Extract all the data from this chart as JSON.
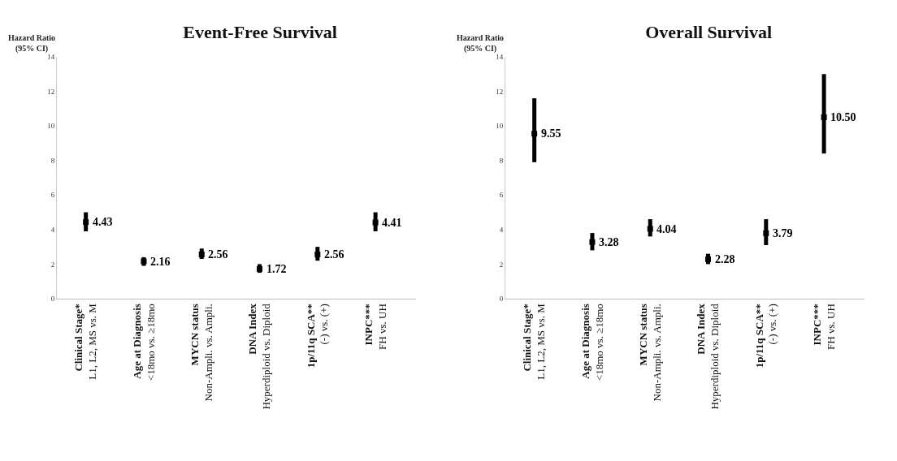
{
  "chart_data": [
    {
      "type": "scatter",
      "title": "Event-Free Survival",
      "ylabel": "Hazard Ratio\n(95% CI)",
      "categories": [
        "Clinical Stage*\nL1, L2, MS vs. M",
        "Age at Diagnosis\n<18mo vs. ≥18mo",
        "MYCN status\nNon-Ampli. vs. Ampli.",
        "DNA Index\nHyperdiploid vs. Diploid",
        "1p/11q SCA**\n(-) vs. (+)",
        "INPC***\nFH vs. UH"
      ],
      "series": [
        {
          "color": "#000000",
          "values": [
            4.43,
            2.16,
            2.56,
            1.72,
            2.56,
            4.41
          ],
          "errors": [
            [
              3.9,
              5.0
            ],
            [
              1.9,
              2.4
            ],
            [
              2.3,
              2.9
            ],
            [
              1.5,
              2.0
            ],
            [
              2.2,
              3.0
            ],
            [
              3.9,
              5.0
            ]
          ],
          "value_labels": [
            "4.43",
            "2.16",
            "2.56",
            "1.72",
            "2.56",
            "4.41"
          ]
        }
      ],
      "ylim": [
        0,
        14
      ],
      "yticks": [
        0,
        2,
        4,
        6,
        8,
        10,
        12,
        14
      ],
      "grid": false
    },
    {
      "type": "scatter",
      "title": "Overall Survival",
      "ylabel": "Hazard Ratio\n(95% CI)",
      "categories": [
        "Clinical Stage*\nL1, L2, MS vs. M",
        "Age at Diagnosis\n<18mo vs. ≥18mo",
        "MYCN status\nNon-Ampli. vs. Ampli.",
        "DNA Index\nHyperdiploid vs. Diploid",
        "1p/11q SCA**\n(-) vs. (+)",
        "INPC***\nFH vs. UH"
      ],
      "series": [
        {
          "color": "#000000",
          "values": [
            9.55,
            3.28,
            4.04,
            2.28,
            3.79,
            10.5
          ],
          "errors": [
            [
              7.9,
              11.6
            ],
            [
              2.8,
              3.8
            ],
            [
              3.6,
              4.6
            ],
            [
              2.0,
              2.6
            ],
            [
              3.1,
              4.6
            ],
            [
              8.4,
              13.0
            ]
          ],
          "value_labels": [
            "9.55",
            "3.28",
            "4.04",
            "2.28",
            "3.79",
            "10.50"
          ]
        }
      ],
      "ylim": [
        0,
        14
      ],
      "yticks": [
        0,
        2,
        4,
        6,
        8,
        10,
        12,
        14
      ],
      "grid": false
    }
  ]
}
